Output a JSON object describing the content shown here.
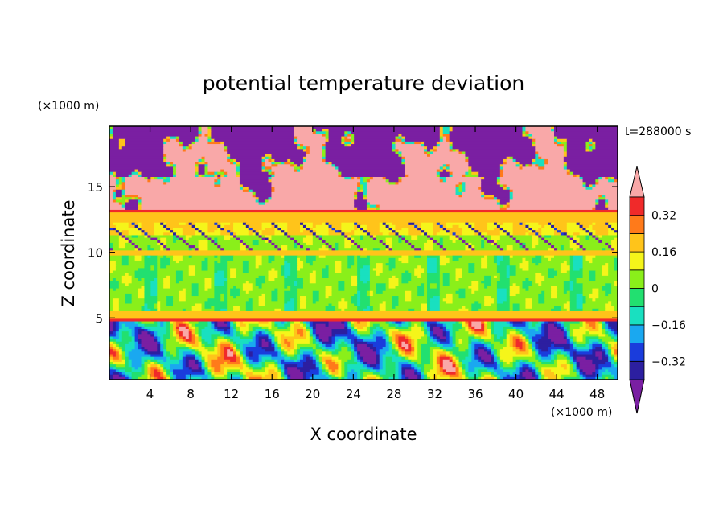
{
  "chart_data": {
    "type": "heatmap",
    "title": "potential temperature deviation",
    "xlabel": "X coordinate",
    "ylabel": "Z coordinate",
    "x_unit": "(×1000 m)",
    "y_unit": "(×1000 m)",
    "time_label": "t=288000 s",
    "xlim": [
      0,
      50
    ],
    "ylim": [
      0.3,
      19.6
    ],
    "x_ticks": [
      4,
      8,
      12,
      16,
      20,
      24,
      28,
      32,
      36,
      40,
      44,
      48
    ],
    "y_ticks": [
      5,
      10,
      15
    ],
    "colorbar": {
      "levels": [
        -0.4,
        -0.32,
        -0.24,
        -0.16,
        -0.08,
        0,
        0.08,
        0.16,
        0.24,
        0.32,
        0.4
      ],
      "labels": [
        "0.32",
        "0.16",
        "0",
        "−0.16",
        "−0.32"
      ],
      "label_values": [
        0.32,
        0.16,
        0,
        -0.16,
        -0.32
      ],
      "colors": [
        "#7a1fa2",
        "#2c1fa0",
        "#1a3cdc",
        "#1aa8f0",
        "#19e0c0",
        "#22e070",
        "#8aef1a",
        "#f5f51a",
        "#ffc41a",
        "#ff7a1a",
        "#f02a2a",
        "#f9a8a8"
      ],
      "extend": "both"
    },
    "bands": [
      {
        "z_range": [
          13.3,
          19.6
        ],
        "description": "upper layer: mix of pink (>0.4) and purple (<-0.4)"
      },
      {
        "z_range": [
          13.0,
          13.3
        ],
        "value": 0.35
      },
      {
        "z_range": [
          12.2,
          13.0
        ],
        "value": 0.2
      },
      {
        "z_range": [
          11.3,
          12.2
        ],
        "value": 0.16
      },
      {
        "z_range": [
          10.2,
          11.3
        ],
        "value": 0.05
      },
      {
        "z_range": [
          9.7,
          10.2
        ],
        "value": 0.18
      },
      {
        "z_range": [
          5.5,
          9.7
        ],
        "value": 0.04
      },
      {
        "z_range": [
          5.0,
          5.5
        ],
        "value": 0.18
      },
      {
        "z_range": [
          4.7,
          5.0
        ],
        "value": 0.35
      },
      {
        "z_range": [
          0.3,
          4.7
        ],
        "description": "lower layer: turbulent mix of all levels"
      }
    ]
  }
}
